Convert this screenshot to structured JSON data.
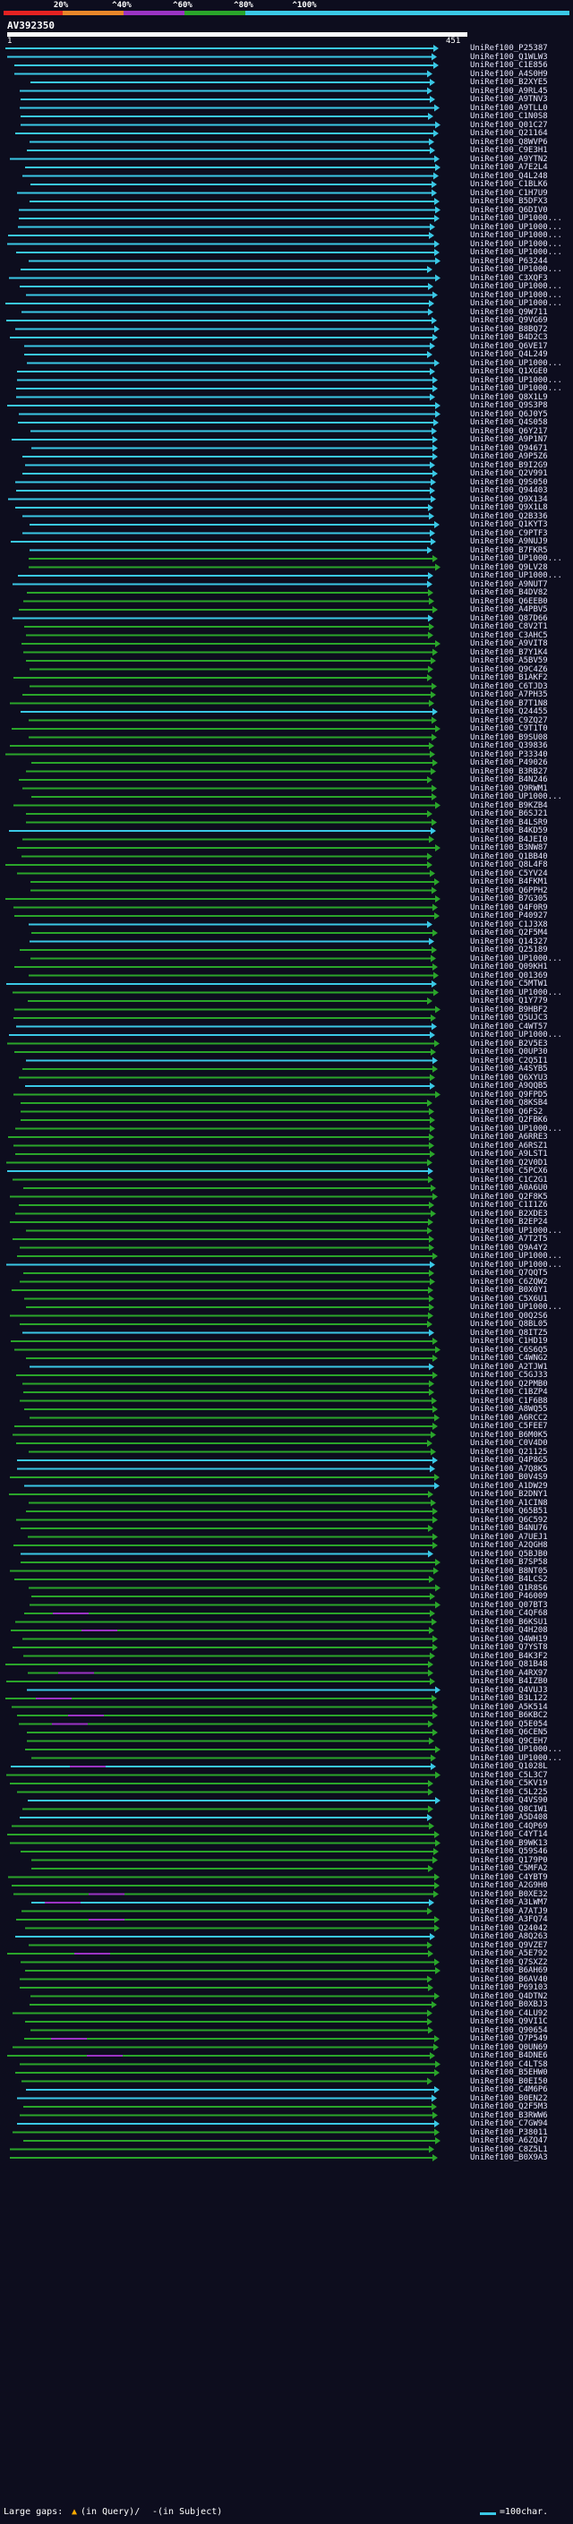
{
  "legend": {
    "ticks": [
      "20%",
      "^40%",
      "^60%",
      "^80%",
      "^100%"
    ],
    "colors": [
      "#e52222",
      "#e8872a",
      "#9b34c4",
      "#2aa52a",
      "#3ac8e6"
    ]
  },
  "query": {
    "name": "AV392350",
    "start": "1",
    "end": "451"
  },
  "footer": {
    "gaps_label": "Large gaps:",
    "gaps_query": "(in Query)/",
    "gaps_subject": "-(in Subject)",
    "scale_label": "=100char."
  },
  "hits": [
    "UniRef100_P25387",
    "UniRef100_Q1WLW3",
    "UniRef100_C1E856",
    "UniRef100_A4S0H9",
    "UniRef100_B2XYE5",
    "UniRef100_A9RL45",
    "UniRef100_A9TNV3",
    "UniRef100_A9TLL0",
    "UniRef100_C1N0S8",
    "UniRef100_Q01C27",
    "UniRef100_Q21164",
    "UniRef100_Q8WVP6",
    "UniRef100_C9E3H1",
    "UniRef100_A9YTN2",
    "UniRef100_A7E2L4",
    "UniRef100_Q4L248",
    "UniRef100_C1BLK6",
    "UniRef100_C1H7U9",
    "UniRef100_B5DFX3",
    "UniRef100_Q6DIV0",
    "UniRef100_UP1000...",
    "UniRef100_UP1000...",
    "UniRef100_UP1000...",
    "UniRef100_UP1000...",
    "UniRef100_UP1000...",
    "UniRef100_P63244",
    "UniRef100_UP1000...",
    "UniRef100_C3XQF3",
    "UniRef100_UP1000...",
    "UniRef100_UP1000...",
    "UniRef100_UP1000...",
    "UniRef100_Q9W711",
    "UniRef100_Q9VG69",
    "UniRef100_B8BQ72",
    "UniRef100_B4D2C3",
    "UniRef100_Q6VE17",
    "UniRef100_Q4L249",
    "UniRef100_UP1000...",
    "UniRef100_Q1XGE0",
    "UniRef100_UP1000...",
    "UniRef100_UP1000...",
    "UniRef100_Q8X1L9",
    "UniRef100_Q9S3P8",
    "UniRef100_Q6J0Y5",
    "UniRef100_Q4S058",
    "UniRef100_Q6Y217",
    "UniRef100_A9P1N7",
    "UniRef100_Q94671",
    "UniRef100_A9P5Z6",
    "UniRef100_B9I2G9",
    "UniRef100_Q2V991",
    "UniRef100_Q9S050",
    "UniRef100_Q94403",
    "UniRef100_Q9X134",
    "UniRef100_Q9X1L8",
    "UniRef100_Q2B336",
    "UniRef100_Q1KYT3",
    "UniRef100_C9PTF3",
    "UniRef100_A9NUJ9",
    "UniRef100_B7FKR5",
    "UniRef100_UP1000...",
    "UniRef100_Q9LV28",
    "UniRef100_UP1000...",
    "UniRef100_A9NUT7",
    "UniRef100_B4DV82",
    "UniRef100_Q6EEB0",
    "UniRef100_A4PBV5",
    "UniRef100_Q87D66",
    "UniRef100_C8V2T1",
    "UniRef100_C3AHC5",
    "UniRef100_A9VIT8",
    "UniRef100_B7Y1K4",
    "UniRef100_A5BV59",
    "UniRef100_Q9C4Z6",
    "UniRef100_B1AKF2",
    "UniRef100_C6TJD3",
    "UniRef100_A7PH35",
    "UniRef100_B7T1N8",
    "UniRef100_Q24455",
    "UniRef100_C9ZQ27",
    "UniRef100_C9T1T0",
    "UniRef100_B9SU08",
    "UniRef100_Q39836",
    "UniRef100_P33340",
    "UniRef100_P49026",
    "UniRef100_B3RB27",
    "UniRef100_B4N246",
    "UniRef100_Q9RWM1",
    "UniRef100_UP1000...",
    "UniRef100_B9KZB4",
    "UniRef100_B6SJ21",
    "UniRef100_B4LSR9",
    "UniRef100_B4KD59",
    "UniRef100_B4JEI0",
    "UniRef100_B3NW87",
    "UniRef100_Q1BB40",
    "UniRef100_Q8L4F8",
    "UniRef100_C5YV24",
    "UniRef100_B4FKM1",
    "UniRef100_Q6PPH2",
    "UniRef100_B7G305",
    "UniRef100_Q4F0R9",
    "UniRef100_P40927",
    "UniRef100_C1J3X8",
    "UniRef100_Q2F5M4",
    "UniRef100_Q14327",
    "UniRef100_Q25189",
    "UniRef100_UP1000...",
    "UniRef100_Q09KH1",
    "UniRef100_Q01369",
    "UniRef100_C5MTW1",
    "UniRef100_UP1000...",
    "UniRef100_Q1Y779",
    "UniRef100_B9HBF2",
    "UniRef100_Q5UJC3",
    "UniRef100_C4WT57",
    "UniRef100_UP1000...",
    "UniRef100_B2V5E3",
    "UniRef100_Q0UP30",
    "UniRef100_C2Q5I1",
    "UniRef100_A4SYB5",
    "UniRef100_Q6XYU3",
    "UniRef100_A9QQB5",
    "UniRef100_Q9FPD5",
    "UniRef100_Q8KSB4",
    "UniRef100_Q6FS2",
    "UniRef100_Q2FBK6",
    "UniRef100_UP1000...",
    "UniRef100_A6RRE3",
    "UniRef100_A6RSZ1",
    "UniRef100_A9LST1",
    "UniRef100_Q2V0D1",
    "UniRef100_C5PCX6",
    "UniRef100_C1C2G1",
    "UniRef100_A0A6U0",
    "UniRef100_Q2F8K5",
    "UniRef100_C1I1Z6",
    "UniRef100_B2XDE3",
    "UniRef100_B2EP24",
    "UniRef100_UP1000...",
    "UniRef100_A7T2T5",
    "UniRef100_Q9A4Y2",
    "UniRef100_UP1000...",
    "UniRef100_UP1000...",
    "UniRef100_Q7QQT5",
    "UniRef100_C6ZQW2",
    "UniRef100_B0X0Y1",
    "UniRef100_C5X6U1",
    "UniRef100_UP1000...",
    "UniRef100_Q0Q2S6",
    "UniRef100_Q8BL05",
    "UniRef100_Q8ITZ5",
    "UniRef100_C1HD19",
    "UniRef100_C6S6Q5",
    "UniRef100_C4WNG2",
    "UniRef100_A2TJW1",
    "UniRef100_C5GJ33",
    "UniRef100_Q2PMB0",
    "UniRef100_C1BZP4",
    "UniRef100_C1F6B8",
    "UniRef100_A8WQ55",
    "UniRef100_A6RCC2",
    "UniRef100_C5FEE7",
    "UniRef100_B6M0K5",
    "UniRef100_C0V4D0",
    "UniRef100_Q21125",
    "UniRef100_Q4P8G5",
    "UniRef100_A7Q8K5",
    "UniRef100_B0V4S9",
    "UniRef100_A1DW29",
    "UniRef100_B2DNY1",
    "UniRef100_A1CIN8",
    "UniRef100_Q65B51",
    "UniRef100_Q6C592",
    "UniRef100_B4NU76",
    "UniRef100_A7UEJ1",
    "UniRef100_A2QGH8",
    "UniRef100_Q5BJB0",
    "UniRef100_B7SP58",
    "UniRef100_B8NT05",
    "UniRef100_B4LCS2",
    "UniRef100_Q1R8S6",
    "UniRef100_P46009",
    "UniRef100_Q07BT3",
    "UniRef100_C4QF68",
    "UniRef100_B6KSU1",
    "UniRef100_Q4H208",
    "UniRef100_Q4WH19",
    "UniRef100_Q7YST8",
    "UniRef100_B4K3F2",
    "UniRef100_Q81B48",
    "UniRef100_A4RX97",
    "UniRef100_B4IZB0",
    "UniRef100_Q4VUJ3",
    "UniRef100_B3L122",
    "UniRef100_A5K514",
    "UniRef100_B6KBC2",
    "UniRef100_Q5E054",
    "UniRef100_Q6CEN5",
    "UniRef100_Q9CEH7",
    "UniRef100_UP1000...",
    "UniRef100_UP1000...",
    "UniRef100_Q1028L",
    "UniRef100_C5L3C7",
    "UniRef100_C5KV19",
    "UniRef100_C5L225",
    "UniRef100_Q4VS90",
    "UniRef100_Q8CIW1",
    "UniRef100_A5D408",
    "UniRef100_C4QP69",
    "UniRef100_C4YT14",
    "UniRef100_B9WK13",
    "UniRef100_Q59S46",
    "UniRef100_Q179P0",
    "UniRef100_C5MFA2",
    "UniRef100_C4YBT9",
    "UniRef100_A2G9H0",
    "UniRef100_B0XE32",
    "UniRef100_A3LWM7",
    "UniRef100_A7ATJ9",
    "UniRef100_A3FQ74",
    "UniRef100_Q24042",
    "UniRef100_A8Q263",
    "UniRef100_Q9VZE7",
    "UniRef100_A5E792",
    "UniRef100_Q7SXZ2",
    "UniRef100_B6AH69",
    "UniRef100_B6AV40",
    "UniRef100_P69103",
    "UniRef100_Q4DTN2",
    "UniRef100_B0XBJ3",
    "UniRef100_C4LU92",
    "UniRef100_Q9VI1C",
    "UniRef100_Q90654",
    "UniRef100_Q7P549",
    "UniRef100_Q0UN69",
    "UniRef100_B4DNE6",
    "UniRef100_C4LTS8",
    "UniRef100_B5EHW0",
    "UniRef100_B0EI50",
    "UniRef100_C4M6P6",
    "UniRef100_B0EN22",
    "UniRef100_Q2F5M3",
    "UniRef100_B3RWW6",
    "UniRef100_C7GW94",
    "UniRef100_P38011",
    "UniRef100_A6ZQ47",
    "UniRef100_C8Z5L1",
    "UniRef100_B0X9A3"
  ]
}
